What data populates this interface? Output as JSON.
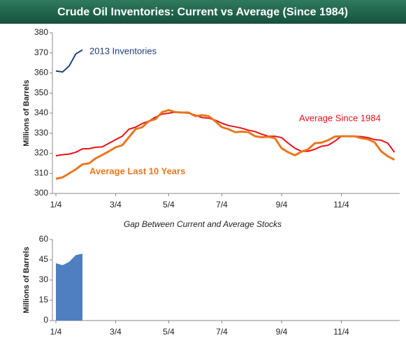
{
  "chart_data": [
    {
      "type": "line",
      "title": "Crude Oil Inventories: Current vs Average (Since 1984)",
      "y_label": "Millions of Barrels",
      "categories": [
        "1/4",
        null,
        null,
        null,
        null,
        null,
        null,
        null,
        null,
        "3/4",
        null,
        null,
        null,
        null,
        null,
        null,
        null,
        "5/4",
        null,
        null,
        null,
        null,
        null,
        null,
        null,
        "7/4",
        null,
        null,
        null,
        null,
        null,
        null,
        null,
        null,
        "9/4",
        null,
        null,
        null,
        null,
        null,
        null,
        null,
        null,
        "11/4",
        null,
        null,
        null,
        null,
        null,
        null,
        null,
        null
      ],
      "ylim": [
        300,
        380
      ],
      "yticks": [
        300,
        310,
        320,
        330,
        340,
        350,
        360,
        370,
        380
      ],
      "grid": false,
      "series": [
        {
          "name": "2013 Inventories",
          "color": "#1f3d7a",
          "values": [
            361,
            360.5,
            363.5,
            369.5,
            371.5,
            null,
            null,
            null,
            null,
            null,
            null,
            null,
            null,
            null,
            null,
            null,
            null,
            null,
            null,
            null,
            null,
            null,
            null,
            null,
            null,
            null,
            null,
            null,
            null,
            null,
            null,
            null,
            null,
            null,
            null,
            null,
            null,
            null,
            null,
            null,
            null,
            null,
            null,
            null,
            null,
            null,
            null,
            null,
            null,
            null,
            null,
            null
          ]
        },
        {
          "name": "Average Since 1984",
          "color": "#e8101a",
          "values": [
            318.8,
            319.3,
            319.6,
            320.5,
            322.2,
            322.3,
            323,
            323.2,
            325,
            326.8,
            328.5,
            332,
            333,
            334.8,
            336,
            338,
            339.5,
            340,
            340.5,
            340.2,
            340,
            339,
            337.8,
            337.5,
            336.5,
            335,
            333.8,
            333.2,
            332.5,
            331.5,
            330.8,
            329.5,
            328.5,
            328.5,
            327.8,
            325,
            322.5,
            321,
            321,
            322,
            323.5,
            324,
            326,
            328.5,
            328.5,
            328.5,
            328.3,
            327.8,
            326.8,
            326.5,
            325,
            320.5
          ]
        },
        {
          "name": "Average Last 10 Years",
          "color": "#e8771e",
          "values": [
            307.3,
            308,
            310,
            312,
            314.5,
            315,
            317.5,
            319.2,
            321,
            323,
            324,
            328,
            332,
            333,
            336,
            337,
            340.5,
            341.5,
            340.5,
            340.3,
            340.3,
            338.5,
            339,
            338.5,
            336,
            333,
            332,
            330.5,
            330.8,
            330.5,
            328.5,
            328,
            328.2,
            327.5,
            322.5,
            320.5,
            319,
            320.8,
            322,
            325,
            325.3,
            326.5,
            328.3,
            328.5,
            328.5,
            328.5,
            327.5,
            327,
            325.5,
            321,
            318.5,
            316.8
          ]
        }
      ]
    },
    {
      "type": "area",
      "title": "Gap Between Current and Average Stocks",
      "y_label": "Millions of Barrels",
      "categories": [
        "1/4",
        null,
        null,
        null,
        null,
        null,
        null,
        null,
        null,
        "3/4",
        null,
        null,
        null,
        null,
        null,
        null,
        null,
        "5/4",
        null,
        null,
        null,
        null,
        null,
        null,
        null,
        "7/4",
        null,
        null,
        null,
        null,
        null,
        null,
        null,
        null,
        "9/4",
        null,
        null,
        null,
        null,
        null,
        null,
        null,
        null,
        "11/4",
        null,
        null,
        null,
        null,
        null,
        null,
        null,
        null
      ],
      "ylim": [
        0,
        60
      ],
      "yticks": [
        0,
        15,
        30,
        45,
        60
      ],
      "grid": false,
      "series": [
        {
          "name": null,
          "color": "#4f7fc0",
          "values": [
            42.5,
            41,
            43.5,
            48.5,
            49.5,
            null,
            null,
            null,
            null,
            null,
            null,
            null,
            null,
            null,
            null,
            null,
            null,
            null,
            null,
            null,
            null,
            null,
            null,
            null,
            null,
            null,
            null,
            null,
            null,
            null,
            null,
            null,
            null,
            null,
            null,
            null,
            null,
            null,
            null,
            null,
            null,
            null,
            null,
            null,
            null,
            null,
            null,
            null,
            null,
            null,
            null,
            null
          ]
        }
      ]
    }
  ]
}
